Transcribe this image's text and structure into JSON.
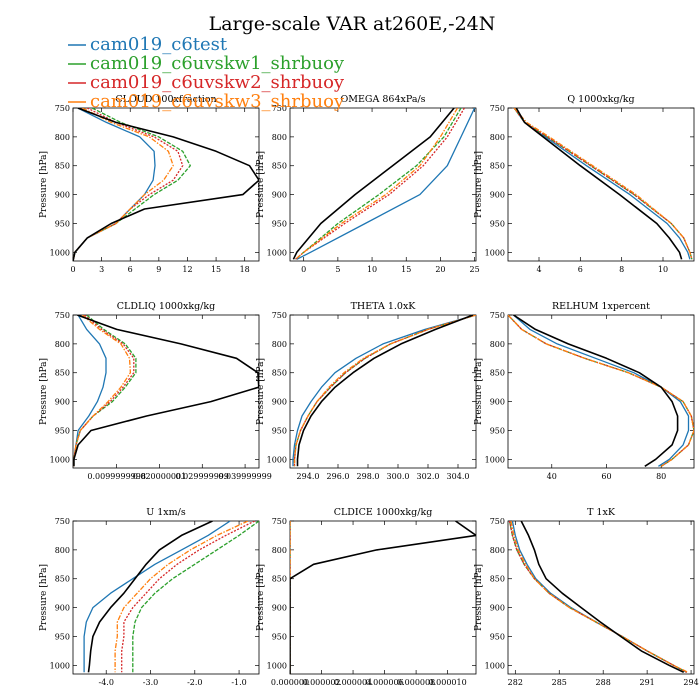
{
  "figure": {
    "title": "Large-scale VAR at260E,-24N",
    "legend": [
      {
        "name": "cam019_c6test",
        "color": "#1f77b4"
      },
      {
        "name": "cam019_c6uvskw1_shrbuoy",
        "color": "#2ca02c"
      },
      {
        "name": "cam019_c6uvskw2_shrbuoy",
        "color": "#d62728"
      },
      {
        "name": "cam019_c6uvskw3_shrbuoy",
        "color": "#ff7f0e"
      }
    ],
    "reference_color": "#000000"
  },
  "chart_data": [
    {
      "type": "line",
      "title": "CLOUD 100xfraction",
      "ylabel": "Pressure [hPa]",
      "xlim": [
        0,
        19.5
      ],
      "ylim": [
        1015,
        750
      ],
      "xticks": [
        0,
        3,
        6,
        9,
        12,
        15,
        18
      ],
      "xticklabels": [
        "0",
        "3",
        "6",
        "9",
        "12",
        "15",
        "18"
      ],
      "yticks": [
        750,
        800,
        850,
        900,
        950,
        1000
      ],
      "y": [
        750,
        775,
        800,
        825,
        850,
        875,
        900,
        925,
        950,
        975,
        1000,
        1015
      ],
      "reference": [
        0.5,
        4.5,
        10.5,
        15.0,
        18.5,
        19.5,
        17.8,
        7.5,
        4.0,
        1.5,
        0.2,
        0.0
      ],
      "series": [
        {
          "values": [
            0.5,
            3.5,
            7.0,
            8.5,
            8.6,
            8.4,
            7.5,
            6.0,
            4.5,
            1.5,
            0.2,
            0.0
          ]
        },
        {
          "values": [
            2.0,
            5.0,
            9.0,
            11.5,
            12.3,
            11.0,
            8.5,
            6.5,
            4.5,
            1.5,
            0.2,
            0.0
          ]
        },
        {
          "values": [
            1.5,
            4.5,
            8.5,
            11.0,
            11.5,
            10.5,
            8.0,
            6.0,
            4.5,
            1.5,
            0.2,
            0.0
          ]
        },
        {
          "values": [
            1.0,
            4.0,
            8.0,
            10.0,
            10.5,
            9.5,
            7.5,
            6.0,
            4.5,
            1.5,
            0.2,
            0.0
          ]
        }
      ]
    },
    {
      "type": "line",
      "title": "OMEGA 864xPa/s",
      "ylabel": "Pressure [hPa]",
      "xlim": [
        -2,
        25.2
      ],
      "ylim": [
        1015,
        750
      ],
      "xticks": [
        0,
        5,
        10,
        15,
        20,
        25
      ],
      "xticklabels": [
        "0",
        "5",
        "10",
        "15",
        "20",
        "25"
      ],
      "yticks": [
        750,
        800,
        850,
        900,
        950,
        1000
      ],
      "y": [
        750,
        800,
        850,
        900,
        950,
        1000,
        1012
      ],
      "reference": [
        22.0,
        18.5,
        13.0,
        7.5,
        2.5,
        -1.0,
        -1.5
      ],
      "series": [
        {
          "values": [
            25.0,
            23.0,
            21.0,
            17.0,
            9.0,
            1.0,
            -1.0
          ]
        },
        {
          "values": [
            23.0,
            20.5,
            16.5,
            11.0,
            5.0,
            0.0,
            -1.2
          ]
        },
        {
          "values": [
            23.5,
            21.0,
            17.5,
            12.5,
            6.0,
            0.0,
            -1.2
          ]
        },
        {
          "values": [
            22.5,
            20.0,
            17.0,
            12.0,
            5.5,
            0.0,
            -1.2
          ]
        }
      ]
    },
    {
      "type": "line",
      "title": "Q 1000xkg/kg",
      "ylabel": "Pressure [hPa]",
      "xlim": [
        2.5,
        11.5
      ],
      "ylim": [
        1015,
        750
      ],
      "xticks": [
        4,
        6,
        8,
        10
      ],
      "xticklabels": [
        "4",
        "6",
        "8",
        "10"
      ],
      "yticks": [
        750,
        800,
        850,
        900,
        950,
        1000
      ],
      "y": [
        750,
        775,
        800,
        850,
        900,
        950,
        975,
        1000,
        1012
      ],
      "reference": [
        2.9,
        3.3,
        4.2,
        6.0,
        7.9,
        9.7,
        10.3,
        10.8,
        10.9
      ],
      "series": [
        {
          "values": [
            2.8,
            3.3,
            4.3,
            6.3,
            8.4,
            10.2,
            10.8,
            11.2,
            11.3
          ]
        },
        {
          "values": [
            2.8,
            3.3,
            4.4,
            6.5,
            8.6,
            10.4,
            11.0,
            11.3,
            11.4
          ]
        },
        {
          "values": [
            2.8,
            3.3,
            4.4,
            6.5,
            8.6,
            10.4,
            11.0,
            11.3,
            11.4
          ]
        },
        {
          "values": [
            2.8,
            3.4,
            4.5,
            6.6,
            8.7,
            10.4,
            11.0,
            11.3,
            11.4
          ]
        }
      ]
    },
    {
      "type": "line",
      "title": "CLDLIQ 1000xkg/kg",
      "ylabel": "Pressure [hPa]",
      "xlim": [
        -0.0002,
        0.04325
      ],
      "ylim": [
        1015,
        750
      ],
      "xticks": [
        0.01,
        0.02,
        0.03,
        0.04
      ],
      "xticklabels": [
        "0.0099999998",
        "0.020000001",
        "0.029999999",
        "0.039999999"
      ],
      "yticks": [
        750,
        800,
        850,
        900,
        950,
        1000
      ],
      "y": [
        750,
        775,
        800,
        825,
        850,
        875,
        900,
        925,
        950,
        975,
        1000,
        1012
      ],
      "reference": [
        0.0008,
        0.01,
        0.025,
        0.038,
        0.043,
        0.0432,
        0.032,
        0.017,
        0.004,
        0.001,
        0.0,
        0.0
      ],
      "series": [
        {
          "values": [
            0.001,
            0.003,
            0.006,
            0.0075,
            0.0075,
            0.0068,
            0.0055,
            0.0035,
            0.001,
            0.0005,
            0.0,
            0.0
          ]
        },
        {
          "values": [
            0.003,
            0.007,
            0.012,
            0.0145,
            0.0145,
            0.012,
            0.009,
            0.0045,
            0.0015,
            0.0005,
            0.0,
            0.0
          ]
        },
        {
          "values": [
            0.0025,
            0.0065,
            0.0115,
            0.014,
            0.014,
            0.0115,
            0.0085,
            0.0045,
            0.0015,
            0.0005,
            0.0,
            0.0
          ]
        },
        {
          "values": [
            0.002,
            0.006,
            0.011,
            0.013,
            0.0132,
            0.011,
            0.008,
            0.0045,
            0.0015,
            0.0005,
            0.0,
            0.0
          ]
        }
      ]
    },
    {
      "type": "line",
      "title": "THETA 1.0xK",
      "ylabel": "Pressure [hPa]",
      "xlim": [
        292.8,
        305.2
      ],
      "ylim": [
        1015,
        750
      ],
      "xticks": [
        294,
        296,
        298,
        300,
        302,
        304
      ],
      "xticklabels": [
        "294.0",
        "296.0",
        "298.0",
        "300.0",
        "302.0",
        "304.0"
      ],
      "yticks": [
        750,
        800,
        850,
        900,
        950,
        1000
      ],
      "y": [
        750,
        775,
        800,
        825,
        850,
        875,
        900,
        925,
        950,
        975,
        1000,
        1012
      ],
      "reference": [
        305.0,
        302.5,
        300.2,
        298.4,
        297.0,
        295.8,
        294.9,
        294.2,
        293.7,
        293.4,
        293.3,
        293.3
      ],
      "series": [
        {
          "values": [
            305.2,
            301.8,
            299.0,
            297.2,
            295.8,
            294.9,
            294.2,
            293.6,
            293.3,
            293.1,
            293.0,
            293.0
          ]
        },
        {
          "values": [
            305.2,
            302.0,
            299.5,
            297.8,
            296.5,
            295.5,
            294.6,
            294.0,
            293.5,
            293.2,
            293.1,
            293.1
          ]
        },
        {
          "values": [
            305.2,
            302.0,
            299.5,
            297.8,
            296.5,
            295.5,
            294.6,
            294.0,
            293.5,
            293.2,
            293.1,
            293.1
          ]
        },
        {
          "values": [
            305.2,
            302.0,
            299.5,
            297.7,
            296.4,
            295.4,
            294.6,
            294.0,
            293.5,
            293.2,
            293.1,
            293.1
          ]
        }
      ]
    },
    {
      "type": "line",
      "title": "RELHUM 1xpercent",
      "ylabel": "Pressure [hPa]",
      "xlim": [
        24,
        92
      ],
      "ylim": [
        1015,
        750
      ],
      "xticks": [
        40,
        60,
        80
      ],
      "xticklabels": [
        "40",
        "60",
        "80"
      ],
      "yticks": [
        750,
        800,
        850,
        900,
        950,
        1000
      ],
      "y": [
        750,
        775,
        800,
        825,
        850,
        875,
        900,
        925,
        950,
        975,
        1000,
        1012
      ],
      "reference": [
        26,
        34,
        46,
        60,
        72,
        80,
        84,
        86,
        86,
        84,
        78,
        74
      ],
      "series": [
        {
          "values": [
            26,
            32,
            42,
            56,
            70,
            80,
            87,
            90,
            90,
            88,
            83,
            79
          ]
        },
        {
          "values": [
            24,
            29,
            38,
            52,
            68,
            80,
            88,
            91,
            92,
            90,
            84,
            80
          ]
        },
        {
          "values": [
            24,
            29,
            38,
            52,
            68,
            80,
            88,
            91,
            92,
            90,
            84,
            80
          ]
        },
        {
          "values": [
            24,
            29,
            38,
            52,
            68,
            80,
            88,
            91,
            92,
            90,
            84,
            80
          ]
        }
      ]
    },
    {
      "type": "line",
      "title": "U 1xm/s",
      "ylabel": "Pressure [hPa]",
      "xlim": [
        -4.75,
        -0.55
      ],
      "ylim": [
        1015,
        750
      ],
      "xticks": [
        -4.0,
        -3.0,
        -2.0,
        -1.0
      ],
      "xticklabels": [
        "-4.0",
        "-3.0",
        "-2.0",
        "-1.0"
      ],
      "yticks": [
        750,
        800,
        850,
        900,
        950,
        1000
      ],
      "y": [
        750,
        775,
        800,
        825,
        850,
        875,
        900,
        925,
        950,
        975,
        1000,
        1012
      ],
      "reference": [
        -1.6,
        -2.3,
        -2.8,
        -3.1,
        -3.35,
        -3.6,
        -3.9,
        -4.15,
        -4.3,
        -4.35,
        -4.38,
        -4.4
      ],
      "series": [
        {
          "values": [
            -1.2,
            -1.7,
            -2.3,
            -2.9,
            -3.4,
            -3.9,
            -4.3,
            -4.45,
            -4.5,
            -4.5,
            -4.5,
            -4.5
          ]
        },
        {
          "values": [
            -0.55,
            -1.0,
            -1.5,
            -2.0,
            -2.5,
            -2.9,
            -3.2,
            -3.35,
            -3.4,
            -3.4,
            -3.4,
            -3.4
          ]
        },
        {
          "values": [
            -0.65,
            -1.3,
            -1.9,
            -2.4,
            -2.8,
            -3.1,
            -3.4,
            -3.6,
            -3.6,
            -3.65,
            -3.65,
            -3.65
          ]
        },
        {
          "values": [
            -0.8,
            -1.5,
            -2.1,
            -2.6,
            -3.0,
            -3.3,
            -3.6,
            -3.75,
            -3.75,
            -3.8,
            -3.8,
            -3.8
          ]
        }
      ]
    },
    {
      "type": "line",
      "title": "CLDICE 1000xkg/kg",
      "ylabel": "Pressure [hPa]",
      "xlim": [
        0,
        1.18e-05
      ],
      "ylim": [
        1015,
        750
      ],
      "xticks": [
        0,
        2e-06,
        4e-06,
        6e-06,
        8e-06,
        1e-05
      ],
      "xticklabels": [
        "0.000000",
        "0.000002",
        "0.000004",
        "0.000006",
        "0.000008",
        "0.000010"
      ],
      "yticks": [
        750,
        800,
        850,
        900,
        950,
        1000
      ],
      "y": [
        750,
        775,
        800,
        825,
        850,
        900,
        1000,
        1015
      ],
      "reference": [
        1.05e-05,
        1.18e-05,
        5.5e-06,
        1.5e-06,
        0.0,
        0.0,
        0.0,
        0.0
      ],
      "series": [
        {
          "values": [
            0,
            0,
            0,
            0,
            0,
            0,
            0,
            0
          ]
        },
        {
          "values": [
            0,
            0,
            0,
            0,
            0,
            0,
            0,
            0
          ]
        },
        {
          "values": [
            0,
            0,
            0,
            0,
            0,
            0,
            0,
            0
          ]
        },
        {
          "values": [
            0,
            0,
            0,
            0,
            0,
            0,
            0,
            0
          ]
        }
      ]
    },
    {
      "type": "line",
      "title": "T 1xK",
      "ylabel": "Pressure [hPa]",
      "xlim": [
        281.5,
        294.2
      ],
      "ylim": [
        1015,
        750
      ],
      "xticks": [
        282,
        285,
        288,
        291,
        294
      ],
      "xticklabels": [
        "282",
        "285",
        "288",
        "291",
        "294"
      ],
      "yticks": [
        750,
        800,
        850,
        900,
        950,
        1000
      ],
      "y": [
        750,
        775,
        800,
        825,
        850,
        875,
        900,
        925,
        950,
        975,
        1000,
        1012
      ],
      "reference": [
        282.4,
        282.9,
        283.3,
        283.6,
        284.1,
        285.2,
        286.5,
        287.8,
        289.2,
        290.6,
        292.5,
        293.5
      ],
      "series": [
        {
          "values": [
            281.8,
            282.0,
            282.3,
            282.8,
            283.4,
            284.4,
            285.8,
            287.5,
            289.3,
            291.0,
            292.8,
            293.7
          ]
        },
        {
          "values": [
            281.6,
            281.8,
            282.1,
            282.6,
            283.3,
            284.3,
            285.7,
            287.5,
            289.3,
            291.0,
            292.8,
            293.7
          ]
        },
        {
          "values": [
            281.6,
            281.8,
            282.1,
            282.6,
            283.3,
            284.3,
            285.7,
            287.5,
            289.3,
            291.0,
            292.8,
            293.7
          ]
        },
        {
          "values": [
            281.7,
            281.9,
            282.2,
            282.7,
            283.3,
            284.3,
            285.7,
            287.5,
            289.3,
            291.0,
            292.8,
            293.8
          ]
        }
      ]
    }
  ]
}
